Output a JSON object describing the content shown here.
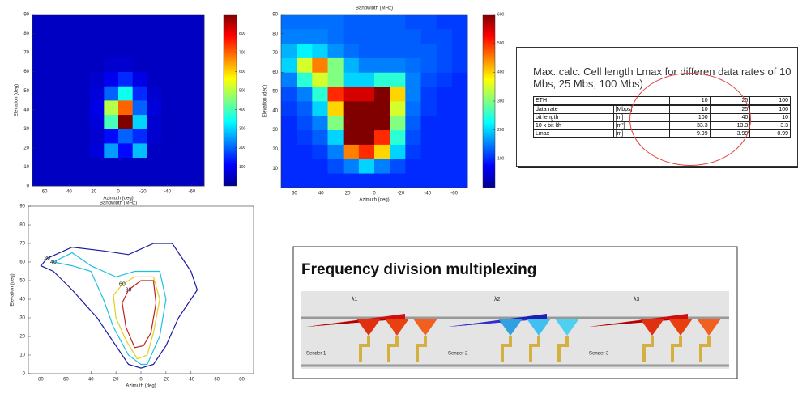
{
  "chart_data": [
    {
      "type": "heatmap",
      "xlabel": "Azimuth (deg)",
      "caption": "Bandwidth (MHz)",
      "ylabel": "Elevation (deg)",
      "xlim": [
        70,
        -70
      ],
      "ylim": [
        0,
        90
      ],
      "xticks": [
        60,
        40,
        20,
        0,
        -20,
        -40,
        -60
      ],
      "yticks": [
        0,
        10,
        20,
        30,
        40,
        50,
        60,
        70,
        80,
        90
      ],
      "clim": [
        0,
        900
      ],
      "cticks": [
        100,
        200,
        300,
        400,
        500,
        600,
        700,
        800
      ],
      "z": [
        [
          60,
          60,
          60,
          60,
          60,
          60,
          60,
          60,
          60,
          60,
          60,
          60
        ],
        [
          60,
          60,
          60,
          60,
          60,
          60,
          60,
          60,
          60,
          60,
          60,
          60
        ],
        [
          60,
          60,
          60,
          60,
          80,
          250,
          120,
          280,
          60,
          60,
          60,
          60
        ],
        [
          60,
          60,
          60,
          60,
          70,
          120,
          200,
          150,
          70,
          60,
          60,
          60
        ],
        [
          60,
          60,
          60,
          60,
          80,
          400,
          900,
          300,
          70,
          60,
          60,
          60
        ],
        [
          60,
          60,
          60,
          60,
          90,
          500,
          700,
          200,
          80,
          60,
          60,
          60
        ],
        [
          60,
          60,
          60,
          60,
          80,
          200,
          350,
          150,
          70,
          60,
          60,
          60
        ],
        [
          60,
          60,
          60,
          60,
          70,
          100,
          150,
          90,
          60,
          60,
          60,
          60
        ],
        [
          60,
          60,
          60,
          60,
          60,
          70,
          70,
          60,
          60,
          60,
          60,
          60
        ],
        [
          60,
          60,
          60,
          60,
          60,
          60,
          60,
          60,
          60,
          60,
          60,
          60
        ],
        [
          60,
          60,
          60,
          60,
          60,
          60,
          60,
          60,
          60,
          60,
          60,
          60
        ],
        [
          60,
          60,
          60,
          60,
          60,
          60,
          60,
          60,
          60,
          60,
          60,
          60
        ]
      ]
    },
    {
      "type": "heatmap",
      "title": "Bandwidth (MHz)",
      "xlabel": "Azimuth (deg)",
      "ylabel": "Elevation (deg)",
      "xlim": [
        70,
        -70
      ],
      "ylim": [
        0,
        90
      ],
      "xticks": [
        60,
        40,
        20,
        0,
        -20,
        -40,
        -60
      ],
      "yticks": [
        10,
        20,
        30,
        40,
        50,
        60,
        70,
        80,
        90
      ],
      "clim": [
        0,
        600
      ],
      "cticks": [
        100,
        200,
        300,
        400,
        500,
        600
      ],
      "z": [
        [
          100,
          100,
          100,
          100,
          100,
          100,
          100,
          100,
          100,
          100,
          100,
          100
        ],
        [
          100,
          100,
          100,
          120,
          150,
          200,
          150,
          120,
          100,
          100,
          100,
          100
        ],
        [
          100,
          100,
          110,
          150,
          450,
          500,
          400,
          200,
          110,
          100,
          100,
          100
        ],
        [
          100,
          110,
          130,
          200,
          600,
          600,
          500,
          250,
          120,
          100,
          100,
          100
        ],
        [
          100,
          120,
          150,
          300,
          600,
          600,
          600,
          300,
          130,
          100,
          100,
          100
        ],
        [
          110,
          130,
          200,
          400,
          600,
          600,
          600,
          350,
          140,
          110,
          100,
          100
        ],
        [
          120,
          150,
          250,
          500,
          550,
          550,
          600,
          400,
          150,
          110,
          100,
          100
        ],
        [
          150,
          250,
          350,
          300,
          200,
          200,
          250,
          250,
          150,
          120,
          110,
          100
        ],
        [
          200,
          350,
          450,
          300,
          180,
          150,
          150,
          150,
          140,
          130,
          120,
          110
        ],
        [
          180,
          220,
          200,
          160,
          140,
          130,
          130,
          130,
          130,
          130,
          120,
          110
        ],
        [
          150,
          150,
          150,
          140,
          130,
          130,
          130,
          130,
          130,
          120,
          120,
          110
        ],
        [
          140,
          140,
          140,
          140,
          130,
          130,
          130,
          130,
          120,
          120,
          110,
          110
        ]
      ]
    },
    {
      "type": "contour",
      "xlabel": "Azimuth (deg)",
      "ylabel": "Elevation (deg)",
      "xlim": [
        90,
        -90
      ],
      "ylim": [
        0,
        90
      ],
      "xticks": [
        80,
        60,
        40,
        20,
        0,
        -20,
        -40,
        -60,
        -80
      ],
      "yticks": [
        0,
        10,
        20,
        30,
        40,
        50,
        60,
        70,
        80,
        90
      ],
      "contours": [
        {
          "level": 20,
          "color": "#1a1aa0",
          "x": [
            75,
            55,
            30,
            10,
            -10,
            -25,
            -40,
            -45,
            -30,
            -20,
            -10,
            0,
            10,
            20,
            35,
            55,
            70,
            80,
            75
          ],
          "y": [
            62,
            68,
            66,
            64,
            70,
            70,
            55,
            45,
            30,
            15,
            5,
            3,
            5,
            15,
            30,
            45,
            55,
            58,
            62
          ]
        },
        {
          "level": 40,
          "color": "#20c0e0",
          "x": [
            70,
            55,
            40,
            20,
            5,
            -15,
            -20,
            -15,
            -5,
            0,
            10,
            22,
            30,
            40,
            55,
            70
          ],
          "y": [
            60,
            65,
            58,
            52,
            55,
            55,
            40,
            20,
            5,
            5,
            10,
            25,
            40,
            55,
            58,
            60
          ]
        },
        {
          "level": 60,
          "color": "#e0d020",
          "x": [
            15,
            5,
            -10,
            -15,
            -10,
            -5,
            3,
            12,
            20,
            22,
            15
          ],
          "y": [
            48,
            52,
            52,
            40,
            22,
            10,
            8,
            18,
            30,
            42,
            48
          ]
        },
        {
          "level": 80,
          "color": "#c02020",
          "x": [
            10,
            0,
            -10,
            -12,
            -8,
            -2,
            5,
            12,
            15,
            10
          ],
          "y": [
            45,
            50,
            50,
            38,
            22,
            15,
            14,
            25,
            38,
            45
          ]
        }
      ]
    }
  ],
  "table": {
    "title": "Max. calc. Cell length Lmax for differen data rates of 10 Mbs, 25 Mbs, 100 Mbs)",
    "header": [
      "ETH",
      "10",
      "25",
      "100"
    ],
    "rows": [
      [
        "data rate",
        "[Mbps]",
        "10",
        "25",
        "100"
      ],
      [
        "bit length",
        "[m]",
        "100",
        "40",
        "10"
      ],
      [
        "10 x bit lth",
        "[m²]",
        "33.3",
        "13.3",
        "3.3"
      ],
      [
        "Lmax",
        "[m]",
        "9.99",
        "3.99",
        "0.99"
      ]
    ]
  },
  "diagram": {
    "title": "Frequency  division multiplexing",
    "senders": [
      "Sender 1",
      "Sender 2",
      "Sender 3"
    ],
    "wavelengths": [
      "λ1",
      "λ2",
      "λ3"
    ]
  }
}
